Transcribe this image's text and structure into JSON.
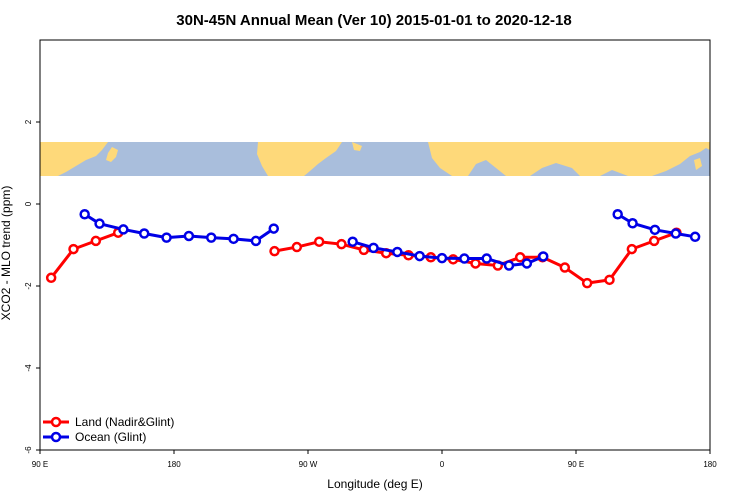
{
  "chart_data": {
    "type": "line",
    "title": "30N-45N Annual Mean (Ver 10)   2015-01-01 to 2020-12-18",
    "xlabel": "Longitude (deg E)",
    "ylabel": "XCO2 - MLO trend (ppm)",
    "xlim": [
      90,
      540
    ],
    "ylim": [
      -6,
      4
    ],
    "x_ticks": [
      {
        "value": 90,
        "label": "90 E"
      },
      {
        "value": 180,
        "label": "180"
      },
      {
        "value": 270,
        "label": "90 W"
      },
      {
        "value": 360,
        "label": "0"
      },
      {
        "value": 450,
        "label": "90 E"
      },
      {
        "value": 540,
        "label": "180"
      }
    ],
    "y_ticks": [
      {
        "value": -6,
        "label": "-6"
      },
      {
        "value": -4,
        "label": "-4"
      },
      {
        "value": -2,
        "label": "-2"
      },
      {
        "value": 0,
        "label": "0"
      },
      {
        "value": 2,
        "label": "2"
      }
    ],
    "map_strip": {
      "y_top": 1.5,
      "y_bottom": 0.62,
      "ocean_color": "#a9bedc",
      "land_color": "#fed97a"
    },
    "legend": {
      "position": "bottom-left"
    },
    "series": [
      {
        "name": "Land (Nadir&Glint)",
        "color": "#ff0000",
        "segments": [
          {
            "x": [
              97.5,
              112.5,
              127.5,
              142.5
            ],
            "y": [
              -1.8,
              -1.1,
              -0.9,
              -0.7
            ]
          },
          {
            "x": [
              247.5,
              262.5,
              277.5,
              292.5,
              307.5,
              322.5,
              337.5,
              352.5,
              367.5,
              382.5,
              397.5,
              412.5,
              427.5,
              442.5,
              457.5,
              472.5,
              487.5,
              502.5,
              517.5
            ],
            "y": [
              -1.15,
              -1.05,
              -0.92,
              -0.98,
              -1.12,
              -1.2,
              -1.25,
              -1.3,
              -1.35,
              -1.45,
              -1.5,
              -1.3,
              -1.3,
              -1.55,
              -1.93,
              -1.85,
              -1.1,
              -0.9,
              -0.7
            ]
          }
        ]
      },
      {
        "name": "Ocean (Glint)",
        "color": "#0000e6",
        "segments": [
          {
            "x": [
              120,
              130,
              146,
              160,
              175,
              190,
              205,
              220,
              235,
              247
            ],
            "y": [
              -0.25,
              -0.48,
              -0.62,
              -0.72,
              -0.82,
              -0.78,
              -0.82,
              -0.85,
              -0.9,
              -0.6
            ]
          },
          {
            "x": [
              300,
              314,
              330,
              345,
              360,
              375,
              390,
              405,
              417,
              428
            ],
            "y": [
              -0.92,
              -1.07,
              -1.17,
              -1.27,
              -1.32,
              -1.33,
              -1.33,
              -1.5,
              -1.45,
              -1.28
            ]
          },
          {
            "x": [
              478,
              488,
              503,
              517,
              530
            ],
            "y": [
              -0.25,
              -0.47,
              -0.63,
              -0.72,
              -0.8
            ]
          }
        ]
      }
    ]
  }
}
